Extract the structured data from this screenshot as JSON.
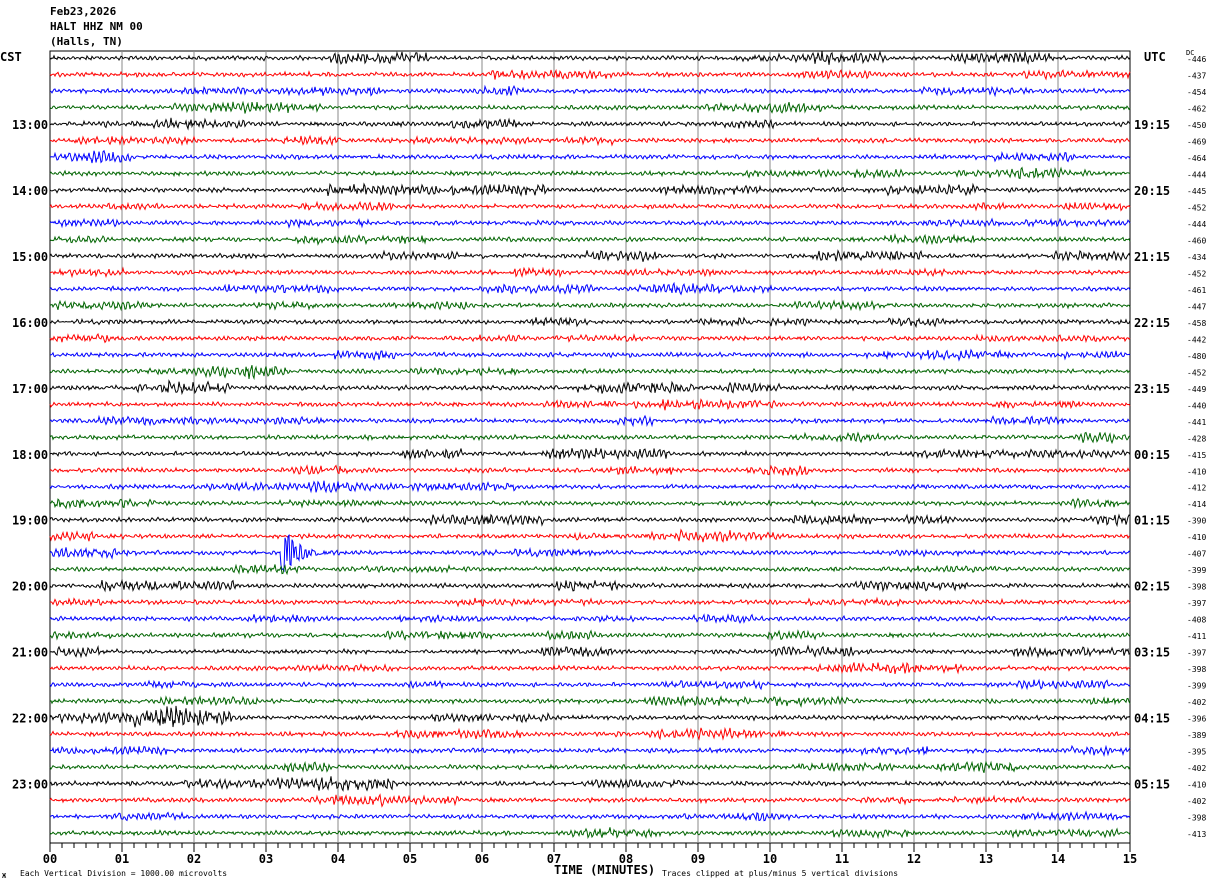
{
  "header": {
    "date": "Feb23,2026",
    "station": "HALT HHZ NM 00",
    "location": "(Halls, TN)"
  },
  "chart_data": {
    "type": "line",
    "title": "HALT HHZ NM 00 helicorder",
    "xlabel": "TIME (MINUTES)",
    "left_timezone": "CST",
    "right_timezone": "UTC",
    "dc_label": "DC",
    "xlim": [
      0,
      15
    ],
    "x_ticks": [
      "00",
      "01",
      "02",
      "03",
      "04",
      "05",
      "06",
      "07",
      "08",
      "09",
      "10",
      "11",
      "12",
      "13",
      "14",
      "15"
    ],
    "trace_minutes": 15,
    "trace_colors": [
      "#000000",
      "#ff0000",
      "#0000ff",
      "#006400"
    ],
    "left_hour_labels": [
      "13:00",
      "14:00",
      "15:00",
      "16:00",
      "17:00",
      "18:00",
      "19:00",
      "20:00",
      "21:00",
      "22:00",
      "23:00"
    ],
    "right_hour_labels": [
      "19:15",
      "20:15",
      "21:15",
      "22:15",
      "23:15",
      "00:15",
      "01:15",
      "02:15",
      "03:15",
      "04:15",
      "05:15"
    ],
    "dc_offsets": [
      -446,
      -437,
      -454,
      -462,
      -450,
      -469,
      -464,
      -444,
      -445,
      -452,
      -444,
      -460,
      -434,
      -452,
      -461,
      -447,
      -458,
      -442,
      -480,
      -452,
      -449,
      -440,
      -441,
      -428,
      -415,
      -410,
      -412,
      -414,
      -390,
      -410,
      -407,
      -399,
      -398,
      -397,
      -408,
      -411,
      -397,
      -398,
      -399,
      -402,
      -396,
      -389,
      -395,
      -402,
      -410,
      -402,
      -398,
      -413
    ],
    "events": [
      {
        "trace_index": 30,
        "minute": 3.3,
        "amplitude_divisions": 5
      }
    ],
    "footer_left": "Each Vertical Division = 1000.00 microvolts",
    "footer_right": "Traces clipped at plus/minus 5 vertical divisions",
    "corner_mark": "Ж"
  }
}
